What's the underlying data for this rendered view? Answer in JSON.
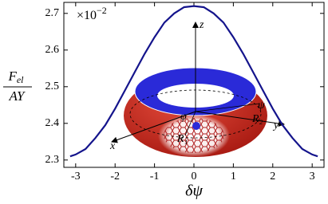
{
  "chart_data": {
    "type": "line",
    "annotation": "×10",
    "annotation_exponent": "−2",
    "ylabel_numerator": "F",
    "ylabel_numerator_sub": "el",
    "ylabel_denominator": "AY",
    "xlabel": "δψ",
    "inset_labels": [
      "z",
      "x",
      "y",
      "φ",
      "R₁",
      "R₂",
      "ψ"
    ],
    "x": [
      -3.14,
      -3.0,
      -2.75,
      -2.5,
      -2.25,
      -2.0,
      -1.75,
      -1.5,
      -1.25,
      -1.0,
      -0.75,
      -0.5,
      -0.25,
      0,
      0.25,
      0.5,
      0.75,
      1.0,
      1.25,
      1.5,
      1.75,
      2.0,
      2.25,
      2.5,
      2.75,
      3.0,
      3.14
    ],
    "series": [
      {
        "color": "#14148c",
        "values": [
          2.31,
          2.315,
          2.33,
          2.36,
          2.395,
          2.44,
          2.49,
          2.54,
          2.59,
          2.635,
          2.675,
          2.7,
          2.717,
          2.72,
          2.717,
          2.7,
          2.675,
          2.635,
          2.59,
          2.54,
          2.49,
          2.44,
          2.395,
          2.36,
          2.33,
          2.315,
          2.31
        ]
      }
    ],
    "xlim": [
      -3.3,
      3.3
    ],
    "ylim": [
      2.28,
      2.73
    ],
    "xticks": [
      -3,
      -2,
      -1,
      0,
      1,
      2,
      3
    ],
    "yticks": [
      2.3,
      2.4,
      2.5,
      2.6,
      2.7
    ]
  }
}
